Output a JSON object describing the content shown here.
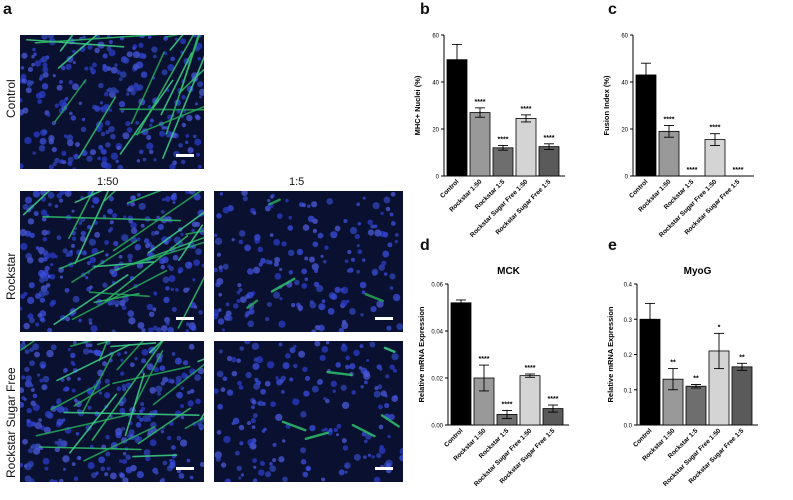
{
  "figure": {
    "panel_letters": {
      "a": "a",
      "b": "b",
      "c": "c",
      "d": "d",
      "e": "e"
    },
    "row_labels": [
      "Control",
      "Rockstar",
      "Rockstar Sugar Free"
    ],
    "col_labels": [
      "1:50",
      "1:5"
    ]
  },
  "chart_data": [
    {
      "id": "b",
      "type": "bar",
      "title": "",
      "ylabel": "MHC+ Nuclei (%)",
      "xlabel": "",
      "ylim": [
        0,
        60
      ],
      "yticks": [
        "0",
        "20",
        "40",
        "60"
      ],
      "categories": [
        "Control",
        "Rockstar 1:50",
        "Rockstar 1:5",
        "Rockstar Sugar Free 1:50",
        "Rockstar Sugar Free 1:5"
      ],
      "values": [
        49.5,
        27,
        12,
        24.5,
        12.5
      ],
      "errors": [
        6.5,
        2,
        1,
        1.5,
        1.2
      ],
      "significance": [
        "",
        "****",
        "****",
        "****",
        "****"
      ],
      "colors": [
        "#000000",
        "#999999",
        "#6e6e6e",
        "#d4d4d4",
        "#5a5a5a"
      ]
    },
    {
      "id": "c",
      "type": "bar",
      "title": "",
      "ylabel": "Fusion Index (%)",
      "xlabel": "",
      "ylim": [
        0,
        60
      ],
      "yticks": [
        "0",
        "20",
        "40",
        "60"
      ],
      "categories": [
        "Control",
        "Rockstar 1:50",
        "Rockstar 1:5",
        "Rockstar Sugar Free 1:50",
        "Rockstar Sugar Free 1:5"
      ],
      "values": [
        43,
        19,
        0,
        15.5,
        0
      ],
      "errors": [
        5,
        2.5,
        0,
        2.5,
        0
      ],
      "significance": [
        "",
        "****",
        "****",
        "****",
        "****"
      ],
      "colors": [
        "#000000",
        "#999999",
        "#6e6e6e",
        "#d4d4d4",
        "#5a5a5a"
      ]
    },
    {
      "id": "d",
      "type": "bar",
      "title": "MCK",
      "ylabel": "Relative mRNA Expression",
      "xlabel": "",
      "ylim": [
        0,
        0.06
      ],
      "yticks": [
        "0.00",
        "0.02",
        "0.04",
        "0.06"
      ],
      "categories": [
        "Control",
        "Rockstar 1:50",
        "Rockstar 1:5",
        "Rockstar Sugar Free 1:50",
        "Rockstar Sugar Free 1:5"
      ],
      "values": [
        0.052,
        0.02,
        0.0045,
        0.021,
        0.007
      ],
      "errors": [
        0.0012,
        0.0055,
        0.0017,
        0.0007,
        0.0015
      ],
      "significance": [
        "",
        "****",
        "****",
        "****",
        "****"
      ],
      "colors": [
        "#000000",
        "#999999",
        "#6e6e6e",
        "#d4d4d4",
        "#5a5a5a"
      ]
    },
    {
      "id": "e",
      "type": "bar",
      "title": "MyoG",
      "ylabel": "Relative mRNA Expression",
      "xlabel": "",
      "ylim": [
        0,
        0.4
      ],
      "yticks": [
        "0.0",
        "0.1",
        "0.2",
        "0.3",
        "0.4"
      ],
      "categories": [
        "Control",
        "Rockstar 1:50",
        "Rockstar 1:5",
        "Rockstar Sugar Free 1:50",
        "Rockstar Sugar Free 1:5"
      ],
      "values": [
        0.3,
        0.13,
        0.11,
        0.21,
        0.165
      ],
      "errors": [
        0.045,
        0.03,
        0.005,
        0.05,
        0.01
      ],
      "significance": [
        "",
        "**",
        "**",
        "*",
        "**"
      ],
      "colors": [
        "#000000",
        "#999999",
        "#6e6e6e",
        "#d4d4d4",
        "#5a5a5a"
      ]
    }
  ]
}
